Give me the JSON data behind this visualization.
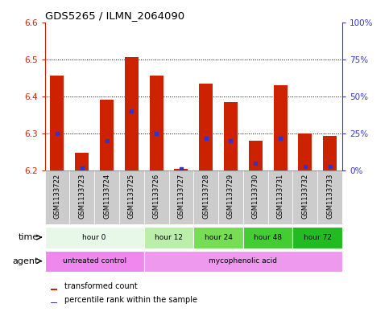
{
  "title": "GDS5265 / ILMN_2064090",
  "samples": [
    "GSM1133722",
    "GSM1133723",
    "GSM1133724",
    "GSM1133725",
    "GSM1133726",
    "GSM1133727",
    "GSM1133728",
    "GSM1133729",
    "GSM1133730",
    "GSM1133731",
    "GSM1133732",
    "GSM1133733"
  ],
  "bar_bottom": 6.2,
  "transformed_count_top": [
    6.455,
    6.248,
    6.39,
    6.505,
    6.455,
    6.205,
    6.435,
    6.385,
    6.28,
    6.43,
    6.3,
    6.293
  ],
  "percentile_rank": [
    25,
    2,
    20,
    40,
    25,
    1,
    22,
    20,
    5,
    22,
    3,
    3
  ],
  "ylim_left": [
    6.2,
    6.6
  ],
  "ylim_right": [
    0,
    100
  ],
  "yticks_left": [
    6.2,
    6.3,
    6.4,
    6.5,
    6.6
  ],
  "yticks_right": [
    0,
    25,
    50,
    75,
    100
  ],
  "ytick_right_labels": [
    "0%",
    "25%",
    "50%",
    "75%",
    "100%"
  ],
  "bar_color": "#cc2200",
  "percentile_color": "#3333cc",
  "time_groups": [
    {
      "label": "hour 0",
      "samples": [
        0,
        1,
        2,
        3
      ],
      "color": "#e8f8e8"
    },
    {
      "label": "hour 12",
      "samples": [
        4,
        5
      ],
      "color": "#bbeeaa"
    },
    {
      "label": "hour 24",
      "samples": [
        6,
        7
      ],
      "color": "#77dd55"
    },
    {
      "label": "hour 48",
      "samples": [
        8,
        9
      ],
      "color": "#44cc33"
    },
    {
      "label": "hour 72",
      "samples": [
        10,
        11
      ],
      "color": "#22bb22"
    }
  ],
  "agent_groups": [
    {
      "label": "untreated control",
      "samples": [
        0,
        1,
        2,
        3
      ],
      "color": "#ee88ee"
    },
    {
      "label": "mycophenolic acid",
      "samples": [
        4,
        5,
        6,
        7,
        8,
        9,
        10,
        11
      ],
      "color": "#ee99ee"
    }
  ],
  "legend_bar_label": "transformed count",
  "legend_pct_label": "percentile rank within the sample",
  "time_label": "time",
  "agent_label": "agent",
  "left_axis_color": "#cc2200",
  "right_axis_color": "#3333cc",
  "bar_width": 0.55,
  "xtick_bg_color": "#cccccc",
  "plot_bg_color": "#ffffff",
  "border_color": "#999999"
}
